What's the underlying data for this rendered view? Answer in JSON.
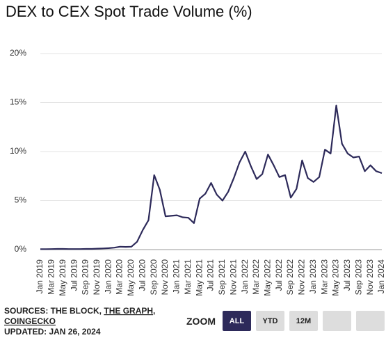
{
  "chart_data": {
    "type": "line",
    "title": "DEX to CEX Spot Trade Volume (%)",
    "categories": [
      "Jan 2019",
      null,
      "Mar 2019",
      null,
      "May 2019",
      null,
      "Jul 2019",
      null,
      "Sep 2019",
      null,
      "Nov 2019",
      null,
      "Jan 2020",
      null,
      "Mar 2020",
      null,
      "May 2020",
      null,
      "Jul 2020",
      null,
      "Sep 2020",
      null,
      "Nov 2020",
      null,
      "Jan 2021",
      null,
      "Mar 2021",
      null,
      "May 2021",
      null,
      "Jul 2021",
      null,
      "Sep 2021",
      null,
      "Nov 2021",
      null,
      "Jan 2022",
      null,
      "Mar 2022",
      null,
      "May 2022",
      null,
      "Jul 2022",
      null,
      "Sep 2022",
      null,
      "Nov 2022",
      null,
      "Jan 2023",
      null,
      "Mar 2023",
      null,
      "May 2023",
      null,
      "Jul 2023",
      null,
      "Sep 2023",
      null,
      "Nov 2023",
      null,
      "Jan 2024"
    ],
    "series": [
      {
        "name": "DEX to CEX Spot Trade Volume",
        "color": "#2d2a5a",
        "values": [
          0.05,
          0.05,
          0.06,
          0.07,
          0.07,
          0.06,
          0.06,
          0.06,
          0.07,
          0.07,
          0.1,
          0.12,
          0.15,
          0.2,
          0.3,
          0.28,
          0.3,
          0.8,
          2.0,
          3.0,
          7.6,
          6.1,
          3.4,
          3.45,
          3.5,
          3.3,
          3.25,
          2.7,
          5.2,
          5.7,
          6.8,
          5.6,
          5.0,
          5.9,
          7.3,
          8.9,
          10.0,
          8.5,
          7.2,
          7.7,
          9.7,
          8.6,
          7.4,
          7.6,
          5.3,
          6.2,
          9.1,
          7.3,
          6.9,
          7.4,
          10.2,
          9.8,
          14.7,
          10.8,
          9.8,
          9.4,
          9.5,
          8.0,
          8.6,
          8.0,
          7.8
        ]
      }
    ],
    "ylim": [
      0,
      20
    ],
    "yticks": [
      {
        "value": 0,
        "label": "0%"
      },
      {
        "value": 5,
        "label": "5%"
      },
      {
        "value": 10,
        "label": "10%"
      },
      {
        "value": 15,
        "label": "15%"
      },
      {
        "value": 20,
        "label": "20%"
      }
    ],
    "grid": true
  },
  "footer": {
    "sources_prefix": "SOURCES: THE BLOCK,",
    "source_link": "THE GRAPH",
    "separator": ",",
    "source_link2": "COINGECKO",
    "updated": "UPDATED: JAN 26, 2024"
  },
  "zoom": {
    "label": "ZOOM",
    "buttons": [
      "ALL",
      "YTD",
      "12M"
    ],
    "active": 0
  }
}
